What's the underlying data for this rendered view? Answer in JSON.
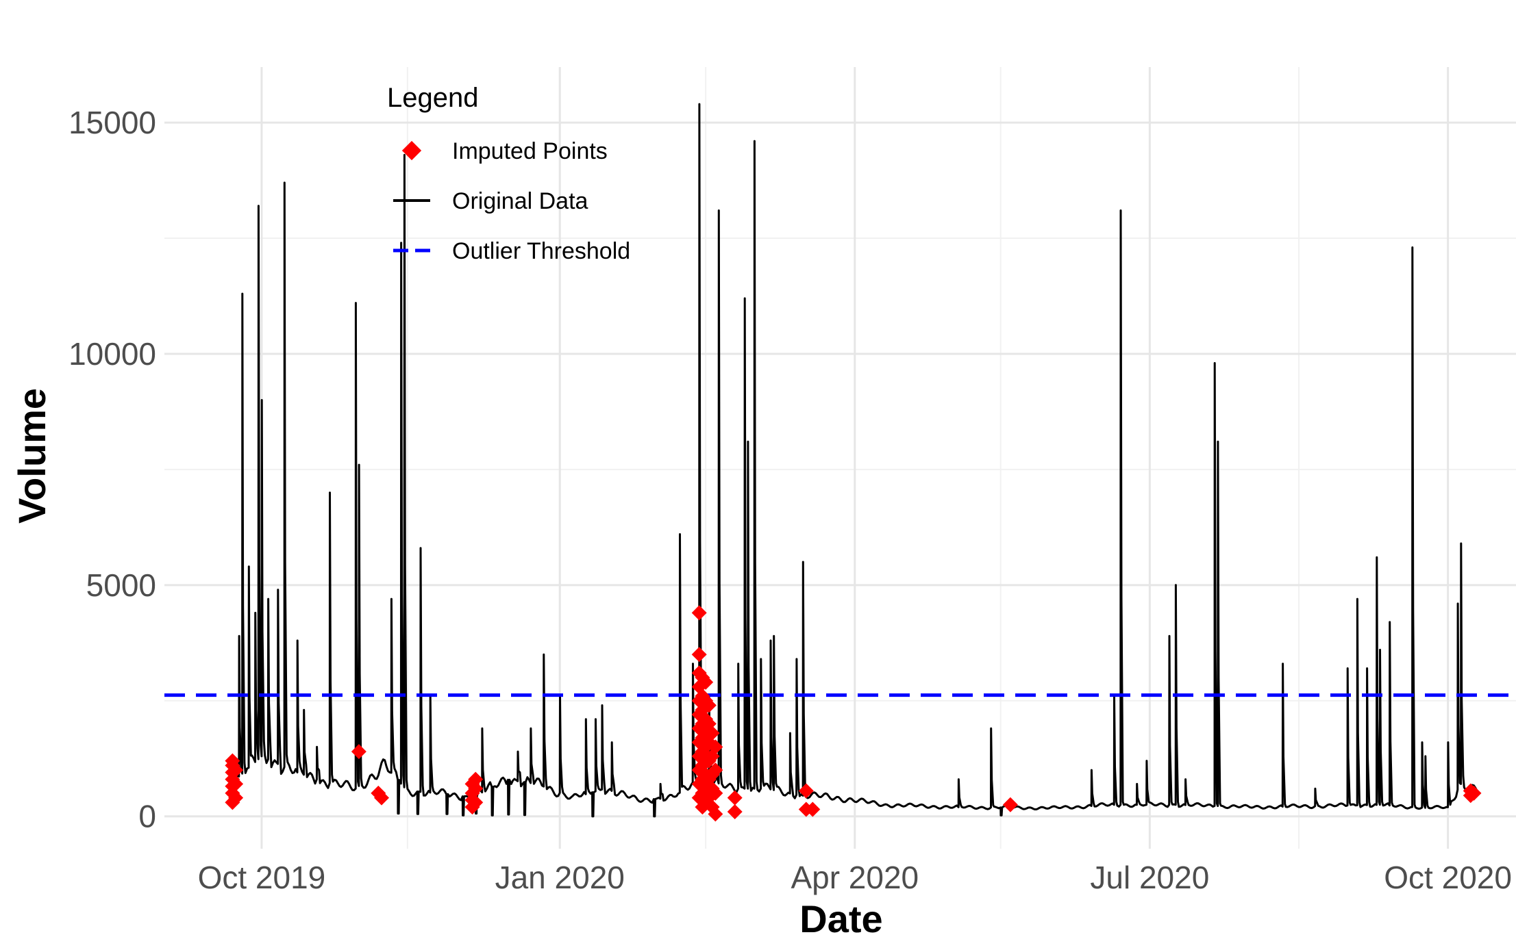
{
  "chart_data": {
    "type": "line",
    "title": "",
    "xlabel": "Date",
    "ylabel": "Volume",
    "xlim": [
      "2019-09-01",
      "2020-10-22"
    ],
    "ylim": [
      -700,
      16200
    ],
    "x_ticks": [
      {
        "date": "2019-10-01",
        "label": "Oct 2019"
      },
      {
        "date": "2020-01-01",
        "label": "Jan 2020"
      },
      {
        "date": "2020-04-01",
        "label": "Apr 2020"
      },
      {
        "date": "2020-07-01",
        "label": "Jul 2020"
      },
      {
        "date": "2020-10-01",
        "label": "Oct 2020"
      }
    ],
    "x_minor_ticks": [
      "2019-11-15",
      "2020-02-15",
      "2020-05-16",
      "2020-08-16"
    ],
    "y_ticks": [
      0,
      5000,
      10000,
      15000
    ],
    "y_minor_ticks": [
      2500,
      7500,
      12500
    ],
    "grid": true,
    "legend": {
      "title": "Legend",
      "position": "top-left",
      "items": [
        {
          "label": "Imputed Points",
          "type": "point",
          "color": "#ff0000",
          "shape": "diamond"
        },
        {
          "label": "Original Data",
          "type": "line",
          "color": "#000000"
        },
        {
          "label": "Outlier Threshold",
          "type": "dashed-line",
          "color": "#0000ff"
        }
      ]
    },
    "threshold": {
      "name": "Outlier Threshold",
      "value": 2620,
      "color": "#0000ff"
    },
    "baseline": [
      [
        "2019-09-23",
        800
      ],
      [
        "2019-10-01",
        1300
      ],
      [
        "2019-10-10",
        1000
      ],
      [
        "2019-10-20",
        750
      ],
      [
        "2019-10-30",
        600
      ],
      [
        "2019-11-08",
        1100
      ],
      [
        "2019-11-15",
        550
      ],
      [
        "2019-11-25",
        500
      ],
      [
        "2019-12-05",
        400
      ],
      [
        "2019-12-15",
        800
      ],
      [
        "2019-12-25",
        700
      ],
      [
        "2020-01-05",
        400
      ],
      [
        "2020-01-15",
        600
      ],
      [
        "2020-01-25",
        350
      ],
      [
        "2020-02-05",
        400
      ],
      [
        "2020-02-14",
        900
      ],
      [
        "2020-02-22",
        600
      ],
      [
        "2020-03-05",
        600
      ],
      [
        "2020-03-15",
        450
      ],
      [
        "2020-03-25",
        420
      ],
      [
        "2020-04-10",
        250
      ],
      [
        "2020-05-01",
        200
      ],
      [
        "2020-06-01",
        180
      ],
      [
        "2020-06-20",
        250
      ],
      [
        "2020-07-10",
        250
      ],
      [
        "2020-08-01",
        200
      ],
      [
        "2020-08-20",
        220
      ],
      [
        "2020-09-10",
        250
      ],
      [
        "2020-09-25",
        180
      ],
      [
        "2020-10-01",
        200
      ],
      [
        "2020-10-05",
        700
      ],
      [
        "2020-10-10",
        550
      ]
    ],
    "dips": [
      [
        "2019-09-25",
        100
      ],
      [
        "2019-10-12",
        200
      ],
      [
        "2019-11-12",
        60
      ],
      [
        "2019-11-18",
        50
      ],
      [
        "2019-11-22",
        30
      ],
      [
        "2019-11-27",
        50
      ],
      [
        "2019-12-02",
        20
      ],
      [
        "2019-12-06",
        60
      ],
      [
        "2019-12-11",
        20
      ],
      [
        "2019-12-16",
        40
      ],
      [
        "2019-12-21",
        30
      ],
      [
        "2020-01-09",
        0
      ],
      [
        "2020-01-11",
        0
      ],
      [
        "2020-01-30",
        0
      ],
      [
        "2020-02-13",
        100
      ],
      [
        "2020-02-16",
        150
      ],
      [
        "2020-02-19",
        200
      ],
      [
        "2020-05-16",
        20
      ]
    ],
    "spikes": [
      [
        "2019-09-24",
        3900
      ],
      [
        "2019-09-25",
        11300
      ],
      [
        "2019-09-27",
        5400
      ],
      [
        "2019-09-29",
        4400
      ],
      [
        "2019-09-30",
        13200
      ],
      [
        "2019-10-01",
        9000
      ],
      [
        "2019-10-03",
        4700
      ],
      [
        "2019-10-06",
        4900
      ],
      [
        "2019-10-08",
        13700
      ],
      [
        "2019-10-12",
        3800
      ],
      [
        "2019-10-14",
        2300
      ],
      [
        "2019-10-18",
        1500
      ],
      [
        "2019-10-22",
        7000
      ],
      [
        "2019-10-30",
        11100
      ],
      [
        "2019-10-31",
        7600
      ],
      [
        "2019-11-10",
        4700
      ],
      [
        "2019-11-13",
        12400
      ],
      [
        "2019-11-14",
        14300
      ],
      [
        "2019-11-19",
        5800
      ],
      [
        "2019-11-22",
        2600
      ],
      [
        "2019-12-08",
        1900
      ],
      [
        "2019-12-19",
        1400
      ],
      [
        "2019-12-23",
        1900
      ],
      [
        "2019-12-27",
        3500
      ],
      [
        "2020-01-01",
        2600
      ],
      [
        "2020-01-09",
        2100
      ],
      [
        "2020-01-12",
        2100
      ],
      [
        "2020-01-14",
        2400
      ],
      [
        "2020-01-17",
        1600
      ],
      [
        "2020-02-01",
        700
      ],
      [
        "2020-02-07",
        6100
      ],
      [
        "2020-02-11",
        3300
      ],
      [
        "2020-02-13",
        15400
      ],
      [
        "2020-02-16",
        2600
      ],
      [
        "2020-02-19",
        13100
      ],
      [
        "2020-02-25",
        3300
      ],
      [
        "2020-02-27",
        11200
      ],
      [
        "2020-02-28",
        8100
      ],
      [
        "2020-03-01",
        14600
      ],
      [
        "2020-03-03",
        3400
      ],
      [
        "2020-03-06",
        3800
      ],
      [
        "2020-03-07",
        3900
      ],
      [
        "2020-03-12",
        1800
      ],
      [
        "2020-03-14",
        3400
      ],
      [
        "2020-03-16",
        5500
      ],
      [
        "2020-05-03",
        800
      ],
      [
        "2020-05-13",
        1900
      ],
      [
        "2020-06-13",
        1000
      ],
      [
        "2020-06-20",
        2600
      ],
      [
        "2020-06-22",
        13100
      ],
      [
        "2020-06-27",
        700
      ],
      [
        "2020-06-30",
        1200
      ],
      [
        "2020-07-07",
        3900
      ],
      [
        "2020-07-09",
        5000
      ],
      [
        "2020-07-12",
        800
      ],
      [
        "2020-07-21",
        9800
      ],
      [
        "2020-07-22",
        8100
      ],
      [
        "2020-08-11",
        3300
      ],
      [
        "2020-08-21",
        600
      ],
      [
        "2020-08-31",
        3200
      ],
      [
        "2020-09-03",
        4700
      ],
      [
        "2020-09-06",
        3200
      ],
      [
        "2020-09-09",
        5600
      ],
      [
        "2020-09-10",
        3600
      ],
      [
        "2020-09-13",
        4200
      ],
      [
        "2020-09-20",
        12300
      ],
      [
        "2020-09-23",
        1600
      ],
      [
        "2020-09-24",
        1300
      ],
      [
        "2020-10-01",
        1600
      ],
      [
        "2020-10-04",
        4600
      ],
      [
        "2020-10-05",
        5900
      ]
    ],
    "imputed_points": [
      [
        "2019-09-22",
        300
      ],
      [
        "2019-09-22",
        500
      ],
      [
        "2019-09-22",
        650
      ],
      [
        "2019-09-22",
        800
      ],
      [
        "2019-09-22",
        950
      ],
      [
        "2019-09-22",
        1100
      ],
      [
        "2019-09-22",
        1200
      ],
      [
        "2019-09-23",
        400
      ],
      [
        "2019-09-23",
        700
      ],
      [
        "2019-09-23",
        1000
      ],
      [
        "2019-10-31",
        1400
      ],
      [
        "2019-11-06",
        500
      ],
      [
        "2019-11-07",
        400
      ],
      [
        "2019-12-05",
        200
      ],
      [
        "2019-12-05",
        350
      ],
      [
        "2019-12-05",
        500
      ],
      [
        "2019-12-05",
        700
      ],
      [
        "2019-12-06",
        300
      ],
      [
        "2019-12-06",
        600
      ],
      [
        "2019-12-06",
        800
      ],
      [
        "2020-02-13",
        4400
      ],
      [
        "2020-02-13",
        3500
      ],
      [
        "2020-02-13",
        3100
      ],
      [
        "2020-02-13",
        2800
      ],
      [
        "2020-02-13",
        2500
      ],
      [
        "2020-02-13",
        2200
      ],
      [
        "2020-02-13",
        1900
      ],
      [
        "2020-02-13",
        1600
      ],
      [
        "2020-02-13",
        1300
      ],
      [
        "2020-02-13",
        1000
      ],
      [
        "2020-02-13",
        700
      ],
      [
        "2020-02-13",
        400
      ],
      [
        "2020-02-14",
        3000
      ],
      [
        "2020-02-14",
        2600
      ],
      [
        "2020-02-14",
        2300
      ],
      [
        "2020-02-14",
        2000
      ],
      [
        "2020-02-14",
        1700
      ],
      [
        "2020-02-14",
        1400
      ],
      [
        "2020-02-14",
        1100
      ],
      [
        "2020-02-14",
        800
      ],
      [
        "2020-02-14",
        500
      ],
      [
        "2020-02-14",
        200
      ],
      [
        "2020-02-15",
        2900
      ],
      [
        "2020-02-15",
        2500
      ],
      [
        "2020-02-15",
        2100
      ],
      [
        "2020-02-15",
        1800
      ],
      [
        "2020-02-15",
        1500
      ],
      [
        "2020-02-15",
        1200
      ],
      [
        "2020-02-15",
        900
      ],
      [
        "2020-02-15",
        600
      ],
      [
        "2020-02-15",
        300
      ],
      [
        "2020-02-16",
        2400
      ],
      [
        "2020-02-16",
        2000
      ],
      [
        "2020-02-16",
        1600
      ],
      [
        "2020-02-16",
        1200
      ],
      [
        "2020-02-16",
        800
      ],
      [
        "2020-02-16",
        400
      ],
      [
        "2020-02-17",
        1800
      ],
      [
        "2020-02-17",
        1300
      ],
      [
        "2020-02-17",
        900
      ],
      [
        "2020-02-17",
        600
      ],
      [
        "2020-02-17",
        200
      ],
      [
        "2020-02-18",
        1500
      ],
      [
        "2020-02-18",
        1000
      ],
      [
        "2020-02-18",
        500
      ],
      [
        "2020-02-18",
        50
      ],
      [
        "2020-02-24",
        400
      ],
      [
        "2020-02-24",
        100
      ],
      [
        "2020-03-17",
        550
      ],
      [
        "2020-03-17",
        150
      ],
      [
        "2020-03-19",
        150
      ],
      [
        "2020-05-19",
        250
      ],
      [
        "2020-10-08",
        550
      ],
      [
        "2020-10-08",
        450
      ],
      [
        "2020-10-09",
        500
      ]
    ]
  }
}
